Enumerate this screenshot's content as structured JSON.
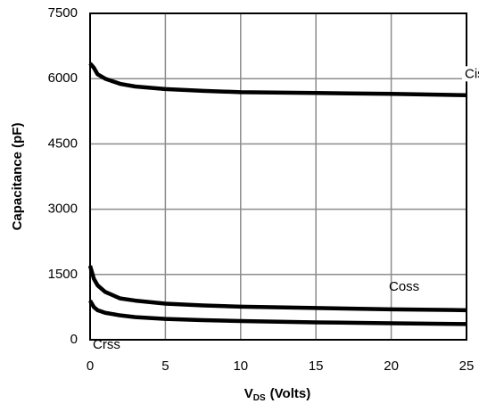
{
  "chart_data": {
    "type": "line",
    "x_label": {
      "main": "V",
      "subscript": "DS",
      "rest": "(Volts)"
    },
    "y_label": "Capacitance (pF)",
    "x": [
      0,
      0.25,
      0.5,
      1,
      2,
      3,
      5,
      7.5,
      10,
      15,
      20,
      25
    ],
    "series": [
      {
        "name": "Ciss",
        "color": "#000000",
        "values": [
          6350,
          6250,
          6100,
          6000,
          5880,
          5820,
          5760,
          5720,
          5690,
          5670,
          5650,
          5620
        ]
      },
      {
        "name": "Coss",
        "color": "#000000",
        "values": [
          1700,
          1400,
          1250,
          1100,
          950,
          900,
          830,
          790,
          760,
          730,
          700,
          680
        ]
      },
      {
        "name": "Crss",
        "color": "#000000",
        "values": [
          900,
          750,
          680,
          620,
          560,
          520,
          480,
          450,
          430,
          400,
          380,
          360
        ]
      }
    ],
    "xlim": [
      0,
      25
    ],
    "xticks": [
      0,
      5,
      10,
      15,
      20,
      25
    ],
    "ylim": [
      0,
      7500
    ],
    "yticks": [
      0,
      1500,
      3000,
      4500,
      6000,
      7500
    ],
    "grid": true
  }
}
